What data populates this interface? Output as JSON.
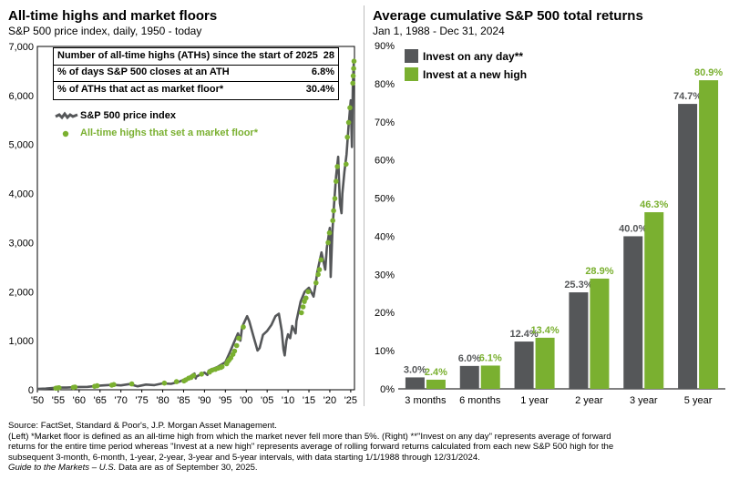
{
  "left": {
    "title": "All-time highs and market floors",
    "subtitle": "S&P 500 price index, daily, 1950 - today",
    "stats": [
      {
        "label": "Number of all-time highs (ATHs) since the start of 2025",
        "value": "28"
      },
      {
        "label": "% of days S&P 500 closes at an ATH",
        "value": "6.8%"
      },
      {
        "label": "% of ATHs that act as market floor*",
        "value": "30.4%"
      }
    ],
    "legend": [
      {
        "label": "S&P 500 price index"
      },
      {
        "label": "All-time highs that set a market floor*"
      }
    ]
  },
  "right": {
    "title": "Average cumulative S&P 500 total returns",
    "subtitle": "Jan 1, 1988 - Dec 31, 2024",
    "legend": [
      {
        "label": "Invest on any day**"
      },
      {
        "label": "Invest at a new high"
      }
    ]
  },
  "colors": {
    "gray": "#555759",
    "green": "#7ab030",
    "line": "#555759"
  },
  "footnotes": [
    "Source: FactSet, Standard & Poor's, J.P. Morgan Asset Management.",
    "(Left) *Market floor is defined as an all-time high from which the market never fell more than 5%. (Right) **\"Invest on any day\" represents average of forward",
    "returns for the entire time period whereas \"Invest at a new high\" represents average of rolling forward returns calculated from each new S&P 500 high for the",
    "subsequent 3-month, 6-month, 1-year, 2-year, 3-year and 5-year intervals, with data starting 1/1/1988  through 12/31/2024."
  ],
  "footnote_last": {
    "italic": "Guide to the Markets – U.S.",
    "rest": " Data are as of September 30, 2025."
  },
  "chart_data": [
    {
      "type": "line",
      "title": "All-time highs and market floors",
      "subtitle": "S&P 500 price index, daily, 1950 - today",
      "x_tick_labels": [
        "'50",
        "'55",
        "'60",
        "'65",
        "'70",
        "'75",
        "'80",
        "'85",
        "'90",
        "'95",
        "'00",
        "'05",
        "'10",
        "'15",
        "'20",
        "'25"
      ],
      "y_tick_labels": [
        "0",
        "1,000",
        "2,000",
        "3,000",
        "4,000",
        "5,000",
        "6,000",
        "7,000"
      ],
      "xlim": [
        1950,
        2025.9
      ],
      "ylim": [
        0,
        7000
      ],
      "series": [
        {
          "name": "S&P 500 price index",
          "x": [
            1950,
            1952,
            1955,
            1957,
            1960,
            1962,
            1965,
            1968,
            1970,
            1972,
            1974,
            1976,
            1978,
            1980,
            1982,
            1984,
            1986,
            1987.6,
            1987.9,
            1988,
            1990,
            1990.7,
            1991,
            1993,
            1995,
            1996,
            1997,
            1998,
            1998.6,
            1999,
            2000.2,
            2000.7,
            2001.7,
            2002.7,
            2003.2,
            2004,
            2005,
            2006,
            2007,
            2007.8,
            2008.5,
            2008.9,
            2009.2,
            2009.6,
            2010,
            2010.5,
            2011,
            2011.8,
            2012,
            2013,
            2014,
            2015,
            2016.1,
            2016.5,
            2017,
            2018,
            2018.9,
            2019.3,
            2020,
            2020.2,
            2020.6,
            2021,
            2021.5,
            2022,
            2022.4,
            2022.8,
            2023,
            2023.5,
            2024,
            2024.5,
            2025,
            2025.28,
            2025.5,
            2025.75
          ],
          "y": [
            17,
            24,
            45,
            44,
            58,
            60,
            85,
            100,
            90,
            115,
            70,
            105,
            95,
            130,
            120,
            165,
            240,
            330,
            230,
            265,
            350,
            300,
            390,
            460,
            560,
            750,
            950,
            1150,
            1000,
            1280,
            1500,
            1400,
            1100,
            800,
            850,
            1120,
            1200,
            1320,
            1500,
            1550,
            1200,
            820,
            700,
            1000,
            1130,
            1050,
            1300,
            1150,
            1400,
            1800,
            2000,
            2080,
            1900,
            2100,
            2400,
            2800,
            2450,
            2900,
            3300,
            2300,
            3200,
            3750,
            4350,
            4750,
            3800,
            3600,
            4000,
            4450,
            4800,
            5400,
            5900,
            4950,
            6200,
            6690
          ]
        }
      ],
      "floor_highs": {
        "name": "All-time highs that set a market floor*",
        "x": [
          1954.4,
          1954.8,
          1955.2,
          1958.6,
          1959.0,
          1963.7,
          1964.3,
          1967.8,
          1968.3,
          1972.6,
          1980.4,
          1983.3,
          1985.1,
          1985.5,
          1986.2,
          1986.8,
          1987.4,
          1989.3,
          1991.2,
          1991.8,
          1992.6,
          1993.3,
          1993.9,
          1994.2,
          1995.3,
          1995.6,
          1995.9,
          1996.3,
          1996.8,
          1997.2,
          1997.7,
          1998.2,
          1999.3,
          2013.2,
          2013.6,
          2013.9,
          2014.3,
          2014.8,
          2016.7,
          2017.2,
          2017.5,
          2017.9,
          2019.6,
          2019.9,
          2020.7,
          2020.9,
          2021.2,
          2021.5,
          2021.8,
          2023.9,
          2024.2,
          2024.5,
          2024.8,
          2025.5,
          2025.6,
          2025.7,
          2025.8
        ],
        "y": [
          32,
          35,
          40,
          48,
          55,
          70,
          82,
          95,
          105,
          118,
          135,
          165,
          180,
          200,
          235,
          250,
          290,
          320,
          360,
          400,
          415,
          440,
          455,
          470,
          530,
          580,
          610,
          650,
          720,
          790,
          900,
          1050,
          1280,
          1570,
          1690,
          1800,
          1870,
          2000,
          2180,
          2350,
          2450,
          2650,
          3000,
          3200,
          3450,
          3650,
          3900,
          4250,
          4550,
          4600,
          5150,
          5450,
          5750,
          6250,
          6400,
          6550,
          6700
        ]
      }
    },
    {
      "type": "bar",
      "title": "Average cumulative S&P 500 total returns",
      "subtitle": "Jan 1, 1988 - Dec 31, 2024",
      "categories": [
        "3 months",
        "6 months",
        "1 year",
        "2 year",
        "3 year",
        "5 year"
      ],
      "y_tick_labels": [
        "0%",
        "10%",
        "20%",
        "30%",
        "40%",
        "50%",
        "60%",
        "70%",
        "80%",
        "90%"
      ],
      "ylim": [
        0,
        90
      ],
      "legend_position": "top-left",
      "series": [
        {
          "name": "Invest on any day**",
          "color": "#555759",
          "values": [
            3.0,
            6.0,
            12.4,
            25.3,
            40.0,
            74.7
          ],
          "labels": [
            "3.0%",
            "6.0%",
            "12.4%",
            "25.3%",
            "40.0%",
            "74.7%"
          ]
        },
        {
          "name": "Invest at a new high",
          "color": "#7ab030",
          "values": [
            2.4,
            6.1,
            13.4,
            28.9,
            46.3,
            80.9
          ],
          "labels": [
            "2.4%",
            "6.1%",
            "13.4%",
            "28.9%",
            "46.3%",
            "80.9%"
          ]
        }
      ]
    }
  ]
}
